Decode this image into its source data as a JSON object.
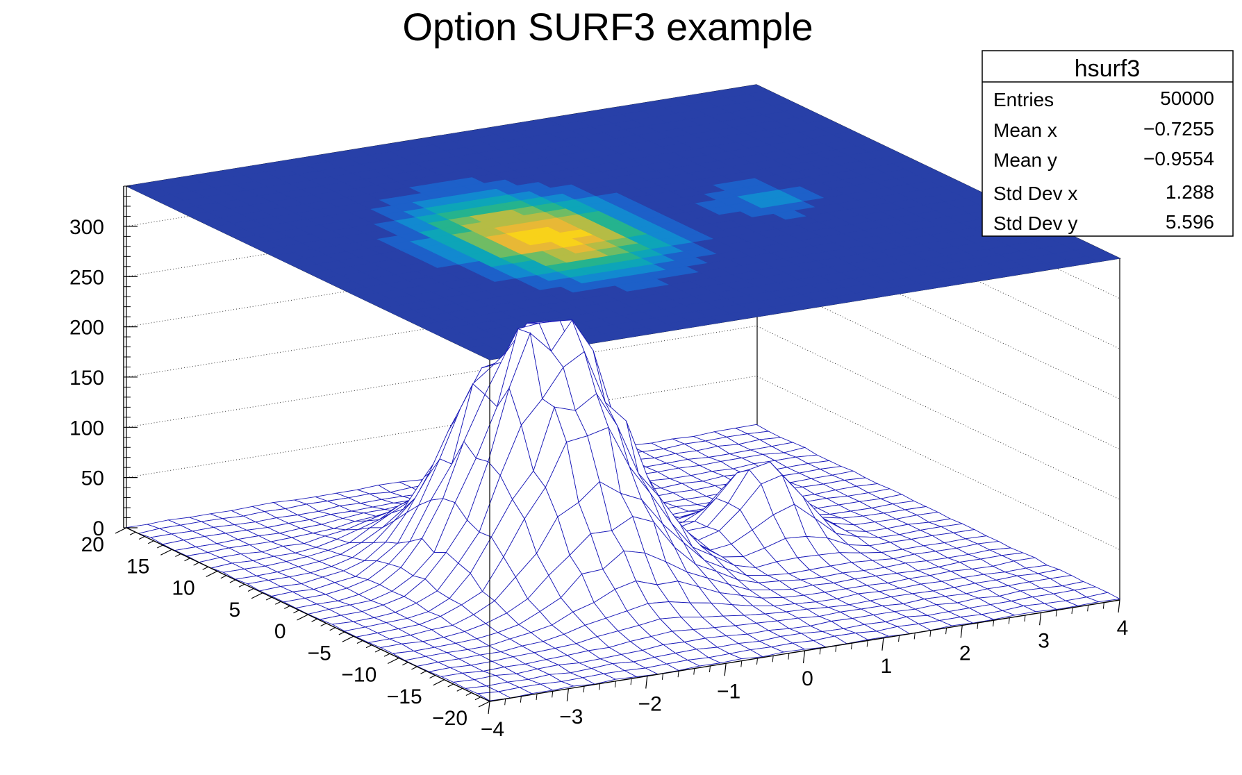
{
  "chart_data": {
    "type": "surface",
    "title": "Option SURF3 example",
    "xlim": [
      -4,
      4
    ],
    "ylim": [
      -20,
      20
    ],
    "zlim": [
      0,
      340
    ],
    "x_ticks": [
      "−4",
      "−3",
      "−2",
      "−1",
      "0",
      "1",
      "2",
      "3",
      "4"
    ],
    "y_ticks": [
      "−20",
      "−15",
      "−10",
      "−5",
      "0",
      "5",
      "10",
      "15",
      "20"
    ],
    "z_ticks": [
      "0",
      "50",
      "100",
      "150",
      "200",
      "250",
      "300"
    ],
    "z_tick_values": [
      0,
      50,
      100,
      150,
      200,
      250,
      300
    ],
    "grid": true,
    "surface": {
      "mesh_color": "#1a1ab8",
      "peaks": [
        {
          "x": -1.0,
          "y": 0.0,
          "height": 260,
          "sigma_x": 0.75,
          "sigma_y": 5.5
        },
        {
          "x": 1.75,
          "y": 0.0,
          "height": 80,
          "sigma_x": 0.4,
          "sigma_y": 2.5
        }
      ]
    },
    "contour_colormap": [
      "#2840a8",
      "#1d60c9",
      "#1289d0",
      "#0da5b8",
      "#25b38e",
      "#6fbc64",
      "#b5bc45",
      "#e8b836",
      "#f8d21a"
    ]
  },
  "stats_box": {
    "name": "hsurf3",
    "rows": [
      {
        "label": "Entries",
        "value": "50000"
      },
      {
        "label": "Mean x",
        "value": "−0.7255"
      },
      {
        "label": "Mean y",
        "value": "−0.9554"
      },
      {
        "label": "Std Dev x",
        "value": "1.288"
      },
      {
        "label": "Std Dev y",
        "value": "5.596"
      }
    ]
  }
}
